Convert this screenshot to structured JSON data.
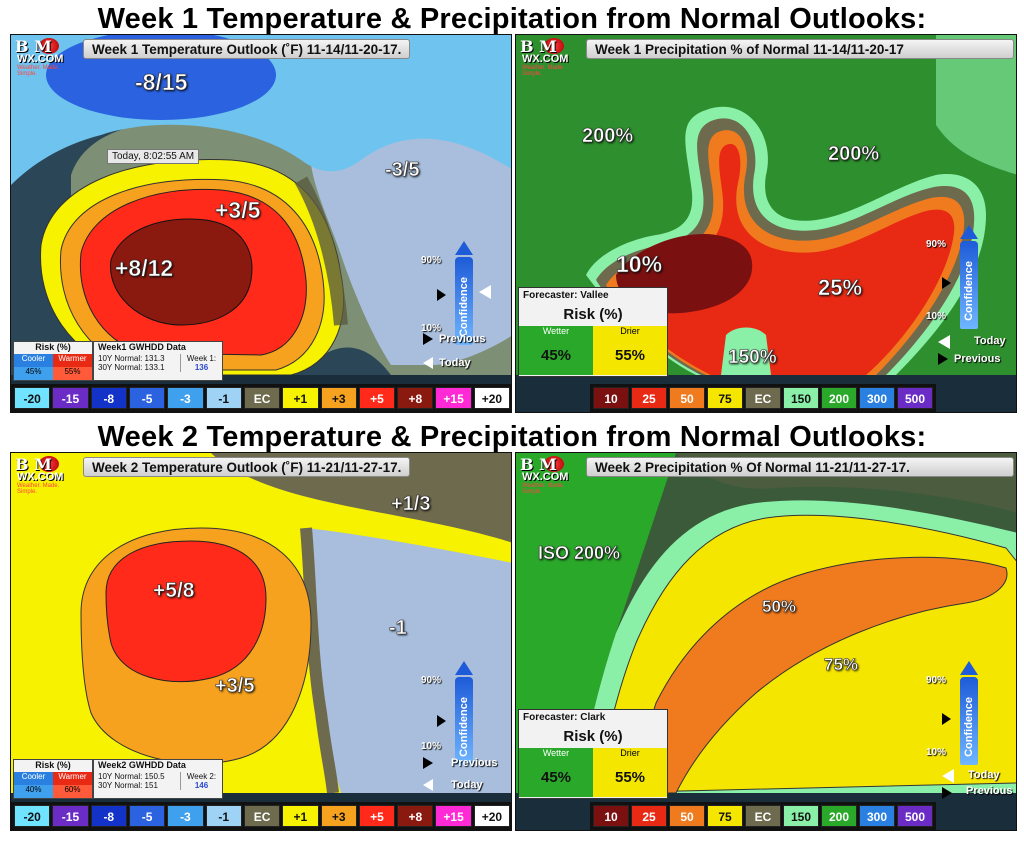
{
  "headings": {
    "week1": "Week 1 Temperature & Precipitation from Normal Outlooks:",
    "week2": "Week 2 Temperature & Precipitation from Normal Outlooks:"
  },
  "logo": {
    "text": "B M",
    "site": "WX.COM",
    "slogan": "Weather. Made. Simple."
  },
  "panels": {
    "w1t": {
      "title": "Week 1 Temperature Outlook (˚F) 11-14/11-20-17.",
      "labels": [
        "-8/15",
        "-3/5",
        "+3/5",
        "+8/12"
      ],
      "time": "Today, 8:02:55 AM",
      "risk": {
        "header": "Risk (%)",
        "cooler": "Cooler",
        "warmer": "Warmer",
        "cooler_val": "45%",
        "warmer_val": "55%"
      },
      "gwhdd": {
        "title": "Week1 GWHDD Data",
        "tenY": "10Y Normal: 131.3",
        "thirtyY": "30Y Normal: 133.1",
        "wk_label": "Week 1:",
        "wk_val": "136"
      }
    },
    "w1p": {
      "title": "Week 1 Precipitation % of Normal 11-14/11-20-17",
      "labels": [
        "200%",
        "200%",
        "10%",
        "25%",
        "150%"
      ],
      "forecaster": "Forecaster: Vallee",
      "risk": {
        "header": "Risk (%)",
        "wetter": "Wetter",
        "drier": "Drier",
        "wetter_val": "45%",
        "drier_val": "55%"
      }
    },
    "w2t": {
      "title": "Week 2 Temperature Outlook (˚F) 11-21/11-27-17.",
      "labels": [
        "+1/3",
        "+5/8",
        "-1",
        "+3/5"
      ],
      "risk": {
        "header": "Risk (%)",
        "cooler": "Cooler",
        "warmer": "Warmer",
        "cooler_val": "40%",
        "warmer_val": "60%"
      },
      "gwhdd": {
        "title": "Week2 GWHDD Data",
        "tenY": "10Y Normal: 150.5",
        "thirtyY": "30Y Normal: 151",
        "wk_label": "Week 2:",
        "wk_val": "146"
      }
    },
    "w2p": {
      "title": "Week 2 Precipitation % Of Normal 11-21/11-27-17.",
      "labels": [
        "ISO 200%",
        "50%",
        "75%"
      ],
      "forecaster": "Forecaster: Clark",
      "risk": {
        "header": "Risk (%)",
        "wetter": "Wetter",
        "drier": "Drier",
        "wetter_val": "45%",
        "drier_val": "55%"
      }
    }
  },
  "confidence": {
    "label": "Confidence",
    "hi": "90%",
    "lo": "10%",
    "previous": "Previous",
    "today": "Today"
  },
  "temp_legend": [
    "-20",
    "-15",
    "-8",
    "-5",
    "-3",
    "-1",
    "EC",
    "+1",
    "+3",
    "+5",
    "+8",
    "+15",
    "+20"
  ],
  "precip_legend": [
    "10",
    "25",
    "50",
    "75",
    "EC",
    "150",
    "200",
    "300",
    "500"
  ],
  "colors": {
    "temp": [
      "#6fe3ff",
      "#6a2cc4",
      "#1232c8",
      "#2a62e0",
      "#3fa0ee",
      "#9ed3f5",
      "#6e6a4e",
      "#f7f200",
      "#f6a21e",
      "#ff2a1a",
      "#8a1a10",
      "#ff2ad6",
      "#ffffff"
    ],
    "precip": [
      "#7a1010",
      "#e82a14",
      "#f07a1e",
      "#f5e600",
      "#6e6a4e",
      "#8af0a8",
      "#2aa82a",
      "#2a80e0",
      "#6a2cc4"
    ]
  }
}
